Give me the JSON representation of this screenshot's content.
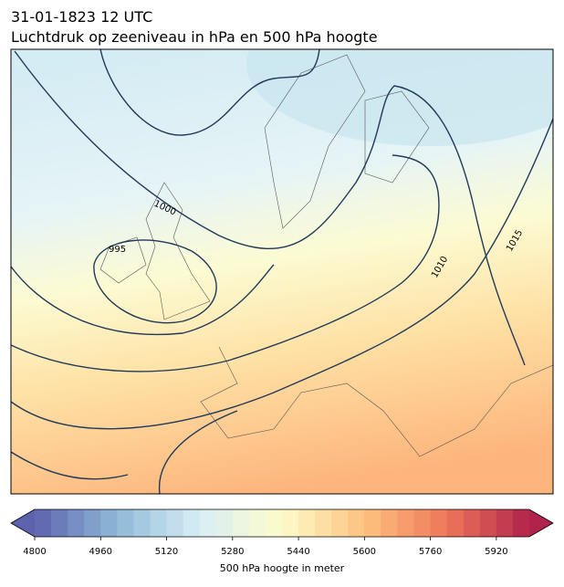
{
  "map": {
    "title_line1": "31-01-1823 12 UTC",
    "title_line2": "Luchtdruk op zeeniveau in hPa en 500 hPa hoogte",
    "isobar_labels": [
      1000,
      995,
      1010,
      1015
    ],
    "colorbar": {
      "lim": [
        4800,
        6000
      ],
      "ticks": [
        4800,
        4960,
        5120,
        5280,
        5440,
        5600,
        5760,
        5920
      ],
      "step": 40,
      "colors": [
        "#5d62ad",
        "#8fb9d8",
        "#d8eef5",
        "#fdfccb",
        "#fdc27f",
        "#ef7659",
        "#b0234a"
      ],
      "label": "500 hPa hoogte in meter"
    }
  }
}
